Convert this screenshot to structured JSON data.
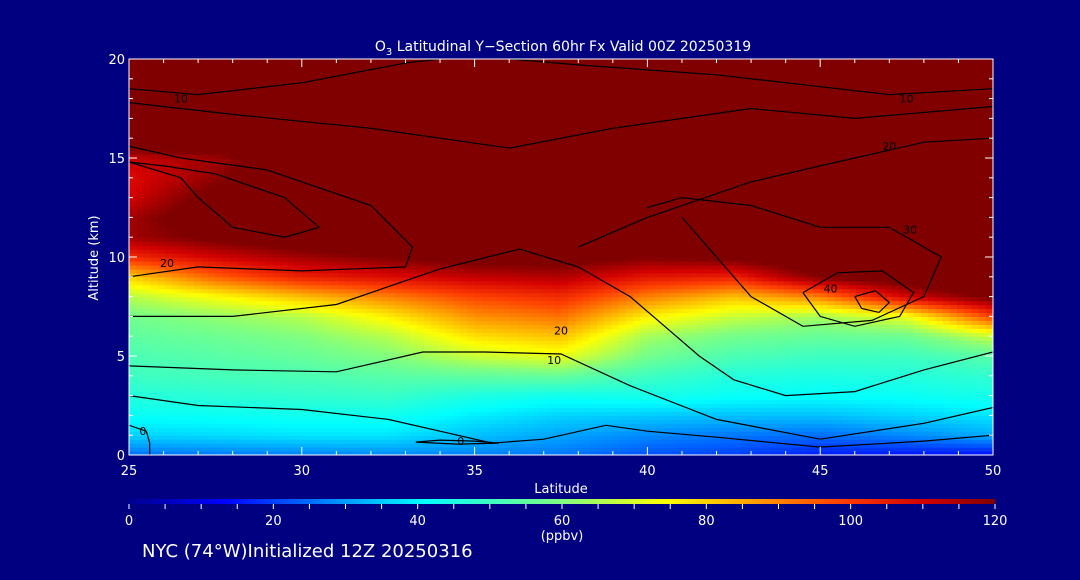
{
  "title_prefix": "O",
  "title_sub": "3",
  "title_rest": " Latitudinal Y−Section 60hr  Fx Valid 00Z 20250319",
  "footer": "NYC (74°W)Initialized 12Z 20250316",
  "colorbar_unit": "(ppbv)",
  "colors": {
    "background": "#000080",
    "contour": "#000000",
    "text": "#ffffff"
  },
  "chart_data": {
    "type": "heatmap",
    "xlabel": "Latitude",
    "ylabel": "Altitude (km)",
    "xlim": [
      25,
      50
    ],
    "ylim": [
      0,
      20
    ],
    "xticks": [
      25,
      30,
      35,
      40,
      45,
      50
    ],
    "yticks": [
      0,
      5,
      10,
      15,
      20
    ],
    "colorbar": {
      "min": 0,
      "max": 120,
      "ticks": [
        0,
        20,
        40,
        60,
        80,
        100,
        120
      ],
      "unit": "ppbv",
      "colormap": "rainbow"
    },
    "grid": false,
    "lat": [
      25,
      27.5,
      30,
      32.5,
      35,
      37.5,
      40,
      42.5,
      45,
      47.5,
      50
    ],
    "alt": [
      0,
      1,
      2,
      3,
      4,
      5,
      6,
      7,
      8,
      9,
      10,
      11,
      12,
      13,
      14,
      15,
      16,
      17,
      18,
      19,
      20
    ],
    "ozone_ppbv": [
      [
        25,
        26,
        27,
        28,
        27,
        26,
        22,
        20,
        16,
        15,
        14
      ],
      [
        36,
        37,
        38,
        38,
        34,
        31,
        28,
        26,
        25,
        28,
        32
      ],
      [
        42,
        42,
        43,
        43,
        39,
        36,
        35,
        34,
        34,
        36,
        38
      ],
      [
        46,
        47,
        48,
        49,
        45,
        43,
        44,
        42,
        41,
        42,
        44
      ],
      [
        50,
        51,
        52,
        54,
        55,
        56,
        50,
        46,
        45,
        46,
        48
      ],
      [
        52,
        54,
        56,
        60,
        68,
        72,
        58,
        52,
        50,
        50,
        54
      ],
      [
        55,
        57,
        60,
        66,
        78,
        82,
        64,
        58,
        56,
        57,
        68
      ],
      [
        58,
        62,
        66,
        76,
        88,
        92,
        76,
        68,
        64,
        72,
        98
      ],
      [
        66,
        74,
        82,
        90,
        98,
        102,
        90,
        82,
        90,
        110,
        122
      ],
      [
        80,
        94,
        104,
        108,
        112,
        114,
        106,
        104,
        120,
        126,
        130
      ],
      [
        102,
        110,
        116,
        120,
        124,
        124,
        120,
        122,
        128,
        132,
        134
      ],
      [
        116,
        122,
        126,
        128,
        130,
        130,
        128,
        130,
        132,
        134,
        136
      ],
      [
        116,
        126,
        130,
        132,
        134,
        134,
        134,
        134,
        136,
        136,
        138
      ],
      [
        110,
        124,
        132,
        134,
        136,
        136,
        136,
        136,
        138,
        138,
        140
      ],
      [
        108,
        118,
        130,
        136,
        138,
        138,
        138,
        138,
        140,
        140,
        140
      ],
      [
        112,
        116,
        128,
        140,
        140,
        140,
        140,
        140,
        140,
        140,
        140
      ],
      [
        130,
        134,
        140,
        140,
        140,
        140,
        140,
        140,
        140,
        140,
        140
      ],
      [
        140,
        140,
        140,
        140,
        140,
        140,
        140,
        140,
        140,
        140,
        140
      ],
      [
        140,
        140,
        140,
        140,
        140,
        140,
        140,
        140,
        140,
        140,
        140
      ],
      [
        140,
        140,
        140,
        140,
        140,
        140,
        140,
        140,
        140,
        140,
        140
      ],
      [
        140,
        140,
        140,
        140,
        140,
        140,
        140,
        140,
        140,
        140,
        140
      ]
    ],
    "contours": [
      {
        "label": "10",
        "label_at": [
          26.5,
          18
        ],
        "points": [
          [
            25,
            18.5
          ],
          [
            27,
            18.2
          ],
          [
            30,
            18.8
          ],
          [
            33,
            19.8
          ],
          [
            34,
            20
          ]
        ]
      },
      {
        "label": "10",
        "label_at": [
          47.5,
          18
        ],
        "points": [
          [
            36,
            20
          ],
          [
            38,
            19.7
          ],
          [
            42,
            19.2
          ],
          [
            45,
            18.6
          ],
          [
            47,
            18.2
          ],
          [
            50,
            18.5
          ]
        ]
      },
      {
        "label": "",
        "label_at": null,
        "points": [
          [
            25,
            17.8
          ],
          [
            28,
            17.2
          ],
          [
            32,
            16.5
          ],
          [
            36,
            15.5
          ],
          [
            39,
            16.5
          ],
          [
            43,
            17.5
          ],
          [
            46,
            17
          ],
          [
            50,
            17.6
          ]
        ]
      },
      {
        "label": "20",
        "label_at": [
          26.1,
          9.7
        ],
        "points": [
          [
            25,
            15.6
          ],
          [
            26.5,
            15
          ],
          [
            29,
            14.4
          ],
          [
            32,
            12.6
          ],
          [
            33.2,
            10.5
          ],
          [
            33,
            9.5
          ],
          [
            30,
            9.3
          ],
          [
            27,
            9.5
          ],
          [
            25,
            9
          ]
        ]
      },
      {
        "label": "",
        "label_at": null,
        "points": [
          [
            25,
            14.8
          ],
          [
            26.5,
            14
          ],
          [
            27,
            13
          ],
          [
            28,
            11.5
          ],
          [
            29.5,
            11
          ],
          [
            30.5,
            11.5
          ],
          [
            29.5,
            13
          ],
          [
            27.5,
            14.2
          ],
          [
            26,
            14.6
          ],
          [
            25,
            14.8
          ]
        ]
      },
      {
        "label": "20",
        "label_at": [
          37.5,
          6.3
        ],
        "points": [
          [
            25,
            7
          ],
          [
            28,
            7
          ],
          [
            31,
            7.6
          ],
          [
            34,
            9.4
          ],
          [
            36.3,
            10.4
          ],
          [
            38,
            9.5
          ],
          [
            39.5,
            8
          ],
          [
            40.5,
            6.5
          ],
          [
            41.5,
            5
          ],
          [
            42.5,
            3.8
          ],
          [
            44,
            3
          ],
          [
            46,
            3.2
          ],
          [
            48,
            4.3
          ],
          [
            50,
            5.2
          ]
        ]
      },
      {
        "label": "10",
        "label_at": [
          37.3,
          4.8
        ],
        "points": [
          [
            25,
            4.5
          ],
          [
            28,
            4.3
          ],
          [
            31,
            4.2
          ],
          [
            33.5,
            5.2
          ],
          [
            35.3,
            5.2
          ],
          [
            37.5,
            5.1
          ],
          [
            39.5,
            3.5
          ],
          [
            42,
            1.8
          ],
          [
            45,
            0.8
          ],
          [
            48,
            1.6
          ],
          [
            50,
            2.4
          ]
        ]
      },
      {
        "label": "",
        "label_at": null,
        "points": [
          [
            25,
            3
          ],
          [
            27,
            2.5
          ],
          [
            30,
            2.3
          ],
          [
            32.5,
            1.8
          ],
          [
            34,
            1.2
          ],
          [
            35.5,
            0.6
          ],
          [
            37,
            0.8
          ],
          [
            38.8,
            1.5
          ],
          [
            40,
            1.2
          ],
          [
            42,
            0.9
          ],
          [
            45,
            0.4
          ],
          [
            48,
            0.7
          ],
          [
            50,
            1
          ]
        ]
      },
      {
        "label": "0",
        "label_at": [
          25.4,
          1.2
        ],
        "points": [
          [
            25,
            1.5
          ],
          [
            25.5,
            1.2
          ],
          [
            25.6,
            0.6
          ],
          [
            25.6,
            0
          ]
        ]
      },
      {
        "label": "0",
        "label_at": [
          34.6,
          0.7
        ],
        "points": [
          [
            33.3,
            0.65
          ],
          [
            34,
            0.75
          ],
          [
            35,
            0.7
          ],
          [
            35.7,
            0.6
          ],
          [
            34.5,
            0.55
          ],
          [
            33.3,
            0.65
          ]
        ]
      },
      {
        "label": "20",
        "label_at": [
          47,
          15.6
        ],
        "points": [
          [
            38,
            10.5
          ],
          [
            40,
            12
          ],
          [
            43,
            13.8
          ],
          [
            46,
            15
          ],
          [
            48,
            15.8
          ],
          [
            50,
            16
          ]
        ]
      },
      {
        "label": "30",
        "label_at": [
          47.6,
          11.4
        ],
        "points": [
          [
            40,
            12.5
          ],
          [
            41,
            13
          ],
          [
            43,
            12.6
          ],
          [
            45,
            11.5
          ],
          [
            47,
            11.5
          ],
          [
            48.5,
            10
          ],
          [
            48,
            8
          ],
          [
            46.5,
            6.8
          ],
          [
            44.5,
            6.5
          ],
          [
            43,
            8
          ],
          [
            42,
            10
          ],
          [
            41,
            12
          ]
        ]
      },
      {
        "label": "40",
        "label_at": [
          45.3,
          8.4
        ],
        "points": [
          [
            44.5,
            8.2
          ],
          [
            45.5,
            9.2
          ],
          [
            46.8,
            9.3
          ],
          [
            47.7,
            8.2
          ],
          [
            47.3,
            7
          ],
          [
            46,
            6.5
          ],
          [
            45,
            7
          ],
          [
            44.5,
            8.2
          ]
        ]
      },
      {
        "label": "",
        "label_at": null,
        "points": [
          [
            46,
            8
          ],
          [
            46.6,
            8.3
          ],
          [
            47,
            7.7
          ],
          [
            46.7,
            7.2
          ],
          [
            46.2,
            7.4
          ],
          [
            46,
            8
          ]
        ]
      }
    ]
  }
}
